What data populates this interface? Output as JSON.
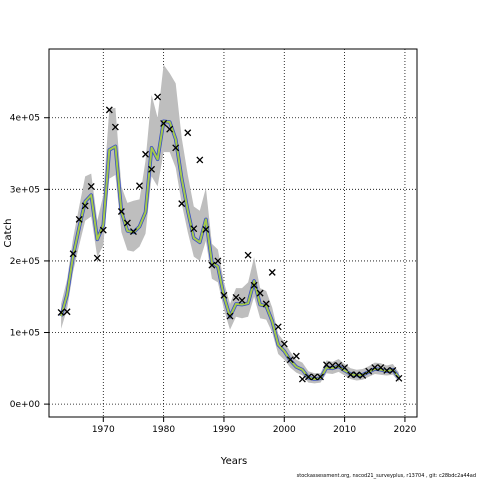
{
  "chart_data": {
    "type": "line",
    "xlabel": "Years",
    "ylabel": "Catch",
    "xlim": [
      1961,
      2022
    ],
    "ylim": [
      -18000,
      496000
    ],
    "x_ticks": [
      {
        "value": 1970,
        "label": "1970"
      },
      {
        "value": 1980,
        "label": "1980"
      },
      {
        "value": 1990,
        "label": "1990"
      },
      {
        "value": 2000,
        "label": "2000"
      },
      {
        "value": 2010,
        "label": "2010"
      },
      {
        "value": 2020,
        "label": "2020"
      }
    ],
    "y_ticks": [
      {
        "value": 0,
        "label": "0e+00"
      },
      {
        "value": 100000,
        "label": "1e+05"
      },
      {
        "value": 200000,
        "label": "2e+05"
      },
      {
        "value": 300000,
        "label": "3e+05"
      },
      {
        "value": 400000,
        "label": "4e+05"
      }
    ],
    "grid": true,
    "footer": "stockassessment.org, nscod21_surveyplus, r13704 , git: c28bdc2a44ad",
    "colors": {
      "band": "#bebebe",
      "fit_outer": "#3a4fc8",
      "fit_inner": "#a4c94a",
      "observed_marker": "#000000",
      "grid": "#000000"
    },
    "fit": {
      "years": [
        1963,
        1964,
        1965,
        1966,
        1967,
        1968,
        1969,
        1970,
        1971,
        1972,
        1973,
        1974,
        1975,
        1976,
        1977,
        1978,
        1979,
        1980,
        1981,
        1982,
        1983,
        1984,
        1985,
        1986,
        1987,
        1988,
        1989,
        1990,
        1991,
        1992,
        1993,
        1994,
        1995,
        1996,
        1997,
        1998,
        1999,
        2000,
        2001,
        2002,
        2003,
        2004,
        2005,
        2006,
        2007,
        2008,
        2009,
        2010,
        2011,
        2012,
        2013,
        2014,
        2015,
        2016,
        2017,
        2018,
        2019
      ],
      "estimate": [
        123000,
        153000,
        207000,
        247000,
        283000,
        292000,
        230000,
        250000,
        355000,
        360000,
        269000,
        242000,
        240000,
        248000,
        268000,
        358000,
        342000,
        395000,
        394000,
        370000,
        315000,
        270000,
        232000,
        226000,
        258000,
        198000,
        192000,
        150000,
        122000,
        140000,
        139000,
        141000,
        172000,
        139000,
        137000,
        116000,
        83000,
        74000,
        61000,
        52000,
        48000,
        37000,
        35000,
        36000,
        51000,
        50000,
        53000,
        47000,
        42000,
        40000,
        41000,
        45000,
        49000,
        48000,
        46000,
        48000,
        37000
      ],
      "lower": [
        105000,
        133000,
        185000,
        222000,
        256000,
        262000,
        205000,
        222000,
        315000,
        320000,
        240000,
        215000,
        213000,
        220000,
        238000,
        318000,
        304000,
        352000,
        352000,
        330000,
        280000,
        240000,
        206000,
        200000,
        228000,
        175000,
        170000,
        132000,
        104000,
        122000,
        120000,
        122000,
        150000,
        120000,
        118000,
        100000,
        70000,
        62000,
        51000,
        44000,
        40000,
        30000,
        29000,
        30000,
        43000,
        42000,
        45000,
        40000,
        35000,
        33000,
        34000,
        38000,
        42000,
        41000,
        40000,
        41000,
        31000
      ],
      "upper": [
        140000,
        174000,
        232000,
        276000,
        318000,
        322000,
        256000,
        292000,
        412000,
        414000,
        304000,
        281000,
        284000,
        286000,
        340000,
        432000,
        400000,
        474000,
        462000,
        448000,
        372000,
        320000,
        276000,
        270000,
        302000,
        224000,
        216000,
        170000,
        140000,
        162000,
        162000,
        170000,
        205000,
        162000,
        158000,
        135000,
        98000,
        87000,
        73000,
        62000,
        58000,
        46000,
        43000,
        43000,
        61000,
        59000,
        63000,
        56000,
        50000,
        48000,
        49000,
        53000,
        58000,
        57000,
        54000,
        56000,
        44000
      ]
    },
    "observed": {
      "years": [
        1963,
        1964,
        1965,
        1966,
        1967,
        1968,
        1969,
        1970,
        1971,
        1972,
        1973,
        1974,
        1975,
        1976,
        1977,
        1978,
        1979,
        1980,
        1981,
        1982,
        1983,
        1984,
        1985,
        1986,
        1987,
        1988,
        1989,
        1990,
        1991,
        1992,
        1993,
        1994,
        1995,
        1996,
        1997,
        1998,
        1999,
        2000,
        2001,
        2002,
        2003,
        2004,
        2005,
        2006,
        2007,
        2008,
        2009,
        2010,
        2011,
        2012,
        2013,
        2014,
        2015,
        2016,
        2017,
        2018,
        2019
      ],
      "values": [
        128000,
        129000,
        210000,
        258000,
        277000,
        304000,
        204000,
        243000,
        411000,
        387000,
        269000,
        253000,
        241000,
        305000,
        349000,
        328000,
        429000,
        392000,
        384000,
        358000,
        280000,
        379000,
        245000,
        341000,
        244000,
        194000,
        200000,
        152000,
        123000,
        149000,
        145000,
        208000,
        166000,
        155000,
        140000,
        184000,
        108000,
        84000,
        62000,
        67000,
        35000,
        38000,
        38000,
        38000,
        55000,
        54000,
        54000,
        51000,
        41000,
        41000,
        40000,
        46000,
        51000,
        51000,
        47000,
        47000,
        36000
      ]
    }
  }
}
